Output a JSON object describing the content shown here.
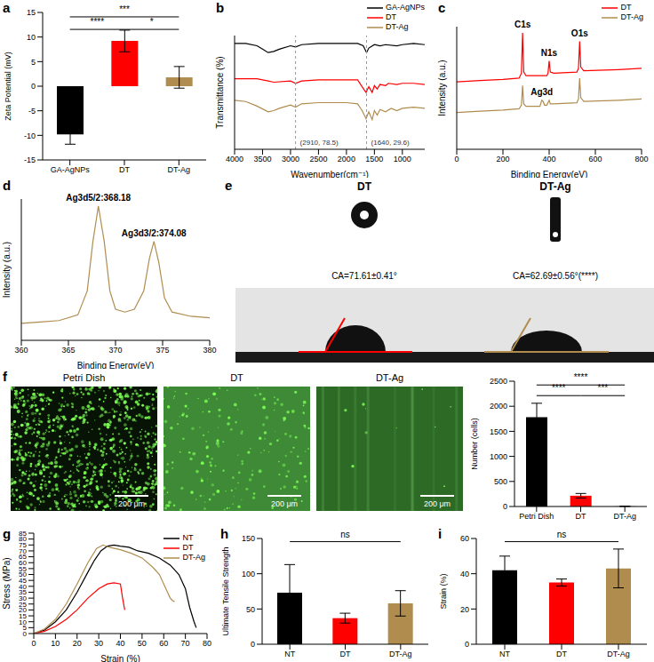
{
  "chart_data": [
    {
      "panel": "a",
      "type": "bar",
      "categories": [
        "GA-AgNPs",
        "DT",
        "DT-Ag"
      ],
      "values": [
        -9.8,
        9.2,
        1.8
      ],
      "error": [
        2.0,
        2.2,
        2.2
      ],
      "colors": [
        "#000000",
        "#ff0000",
        "#b08d4f"
      ],
      "y_label": "Zeta Potential (mV)",
      "ylim": [
        -15,
        15
      ],
      "yticks": [
        -15,
        -10,
        -5,
        0,
        5,
        10,
        15
      ],
      "significance": [
        {
          "from": "GA-AgNPs",
          "to": "DT-Ag",
          "label": "***"
        },
        {
          "from": "GA-AgNPs",
          "to": "DT",
          "label": "****"
        },
        {
          "from": "DT",
          "to": "DT-Ag",
          "label": "*"
        }
      ]
    },
    {
      "panel": "b",
      "type": "line",
      "x_label": "Wavenumber(cm⁻¹)",
      "y_label": "Transmittance (%)",
      "xlim": [
        4000,
        600
      ],
      "xticks": [
        4000,
        3500,
        3000,
        2500,
        2000,
        1500,
        1000
      ],
      "ylim": [
        0,
        100
      ],
      "tick_labels": "x",
      "legend": "top-right",
      "annotations": [
        {
          "text": "(2910, 78.5)",
          "x": 2910
        },
        {
          "text": "(1640, 29.6)",
          "x": 1640
        }
      ],
      "series": [
        {
          "name": "GA-AgNPs",
          "color": "#000000",
          "x": [
            4000,
            3800,
            3600,
            3500,
            3400,
            3300,
            3200,
            3000,
            2910,
            2800,
            2500,
            2200,
            2000,
            1800,
            1700,
            1640,
            1600,
            1500,
            1400,
            1300,
            1100,
            1000,
            800,
            600
          ],
          "values": [
            93,
            93,
            91,
            88,
            85,
            86,
            88,
            91,
            90,
            92,
            93,
            93,
            93,
            93,
            91,
            85,
            89,
            92,
            91,
            92,
            91,
            92,
            93,
            92
          ]
        },
        {
          "name": "DT",
          "color": "#ff0000",
          "x": [
            4000,
            3600,
            3400,
            3300,
            3000,
            2910,
            2800,
            2500,
            2000,
            1800,
            1720,
            1650,
            1600,
            1540,
            1500,
            1450,
            1400,
            1300,
            1250,
            1100,
            1000,
            800,
            600
          ],
          "values": [
            62,
            62,
            60,
            59,
            60,
            58,
            60,
            61,
            61,
            61,
            55,
            50,
            55,
            50,
            56,
            53,
            57,
            56,
            58,
            57,
            58,
            58,
            57
          ]
        },
        {
          "name": "DT-Ag",
          "color": "#b08d4f",
          "x": [
            4000,
            3800,
            3600,
            3400,
            3300,
            3200,
            3000,
            2910,
            2800,
            2500,
            2200,
            2000,
            1800,
            1720,
            1650,
            1600,
            1540,
            1500,
            1450,
            1400,
            1300,
            1200,
            1100,
            1000,
            800,
            600
          ],
          "values": [
            43,
            42,
            38,
            33,
            34,
            36,
            39,
            37,
            40,
            41,
            41,
            41,
            40,
            34,
            27,
            33,
            26,
            34,
            30,
            35,
            33,
            36,
            34,
            36,
            37,
            36
          ]
        }
      ]
    },
    {
      "panel": "c",
      "type": "line",
      "x_label": "Binding Energy(eV)",
      "y_label": "Intensity (a.u.)",
      "xlim": [
        0,
        800
      ],
      "xticks": [
        0,
        200,
        400,
        600,
        800
      ],
      "ylim": [
        0,
        100
      ],
      "tick_labels": "x",
      "legend": "top-right",
      "annotations": [
        {
          "text": "C1s",
          "x": 285,
          "y": 95
        },
        {
          "text": "N1s",
          "x": 400,
          "y": 72
        },
        {
          "text": "O1s",
          "x": 532,
          "y": 88
        },
        {
          "text": "Ag3d",
          "x": 368,
          "y": 40
        }
      ],
      "series": [
        {
          "name": "DT",
          "color": "#ff0000",
          "x": [
            0,
            100,
            200,
            270,
            280,
            285,
            290,
            300,
            390,
            395,
            400,
            405,
            420,
            520,
            527,
            532,
            537,
            550,
            700,
            800
          ],
          "values": [
            55,
            56,
            57,
            58,
            62,
            95,
            63,
            60,
            60,
            62,
            72,
            63,
            62,
            63,
            66,
            88,
            67,
            64,
            65,
            66
          ]
        },
        {
          "name": "DT-Ag",
          "color": "#b08d4f",
          "x": [
            0,
            100,
            200,
            270,
            280,
            285,
            290,
            300,
            360,
            368,
            374,
            380,
            390,
            400,
            405,
            420,
            520,
            527,
            532,
            537,
            550,
            700,
            800
          ],
          "values": [
            30,
            31,
            32,
            33,
            36,
            52,
            37,
            35,
            35,
            40,
            39,
            36,
            36,
            40,
            37,
            37,
            38,
            41,
            58,
            42,
            39,
            40,
            41
          ]
        }
      ]
    },
    {
      "panel": "d",
      "type": "line",
      "x_label": "Binding Energy(eV)",
      "y_label": "Intensity (a.u.)",
      "xlim": [
        360,
        380
      ],
      "xticks": [
        360,
        365,
        370,
        375,
        380
      ],
      "ylim": [
        0,
        100
      ],
      "tick_labels": "x",
      "annotations": [
        {
          "text": "Ag3d5/2:368.18",
          "x": 368.18,
          "y": 95
        },
        {
          "text": "Ag3d3/2:374.08",
          "x": 374.08,
          "y": 70
        }
      ],
      "series": [
        {
          "name": "DT-Ag",
          "color": "#b08d4f",
          "x": [
            360,
            362,
            364,
            366,
            367,
            367.6,
            368.18,
            368.8,
            369.4,
            370,
            371,
            372,
            373,
            373.6,
            374.08,
            374.6,
            375.2,
            376,
            378,
            380
          ],
          "values": [
            12,
            13,
            14,
            18,
            35,
            70,
            95,
            70,
            35,
            22,
            20,
            22,
            35,
            58,
            70,
            55,
            30,
            20,
            17,
            16
          ]
        }
      ]
    },
    {
      "panel": "e",
      "type": "photos",
      "items": [
        {
          "title": "DT",
          "annotation": "CA=71.61±0.41°"
        },
        {
          "title": "DT-Ag",
          "annotation": "CA=62.69±0.56°(****)"
        }
      ]
    },
    {
      "panel": "f",
      "type": "bar",
      "images": [
        {
          "title": "Petri Dish",
          "scale_bar": "200 μm"
        },
        {
          "title": "DT",
          "scale_bar": "200 μm"
        },
        {
          "title": "DT-Ag",
          "scale_bar": "200 μm"
        }
      ],
      "categories": [
        "Petri Dish",
        "DT",
        "DT-Ag"
      ],
      "values": [
        1780,
        215,
        5
      ],
      "error": [
        280,
        45,
        2
      ],
      "colors": [
        "#000000",
        "#ff0000",
        "#b08d4f"
      ],
      "y_label": "Number (cells)",
      "ylim": [
        0,
        2500
      ],
      "yticks": [
        0,
        500,
        1000,
        1500,
        2000,
        2500
      ],
      "significance": [
        {
          "from": "Petri Dish",
          "to": "DT-Ag",
          "label": "****"
        },
        {
          "from": "Petri Dish",
          "to": "DT",
          "label": "****"
        },
        {
          "from": "DT",
          "to": "DT-Ag",
          "label": "***"
        }
      ]
    },
    {
      "panel": "g",
      "type": "line",
      "x_label": "Strain (%)",
      "y_label": "Stress (MPa)",
      "xlim": [
        0,
        80
      ],
      "xticks": [
        0,
        10,
        20,
        30,
        40,
        50,
        60,
        70,
        80
      ],
      "ylim": [
        0,
        85
      ],
      "yticks": [
        0,
        5,
        10,
        15,
        20,
        25,
        30,
        35,
        40,
        45,
        50,
        55,
        60,
        65,
        70,
        75,
        80,
        85
      ],
      "legend": "top-right",
      "series": [
        {
          "name": "NT",
          "color": "#000000",
          "x": [
            0,
            5,
            10,
            15,
            20,
            25,
            28,
            31,
            34,
            37,
            40,
            44,
            48,
            53,
            58,
            63,
            67,
            70,
            72,
            74,
            75
          ],
          "values": [
            0,
            3,
            10,
            20,
            35,
            52,
            62,
            70,
            74,
            75,
            74,
            73,
            70,
            68,
            64,
            58,
            50,
            38,
            22,
            10,
            5
          ]
        },
        {
          "name": "DT",
          "color": "#ff0000",
          "x": [
            0,
            5,
            10,
            15,
            20,
            25,
            30,
            34,
            37,
            40,
            41,
            42
          ],
          "values": [
            0,
            2,
            6,
            12,
            20,
            30,
            38,
            42,
            43,
            42,
            30,
            20
          ]
        },
        {
          "name": "DT-Ag",
          "color": "#b08d4f",
          "x": [
            0,
            5,
            10,
            15,
            20,
            25,
            29,
            32,
            35,
            40,
            45,
            50,
            55,
            58,
            61,
            63,
            64,
            65
          ],
          "values": [
            0,
            4,
            12,
            25,
            42,
            60,
            72,
            75,
            73,
            71,
            68,
            64,
            56,
            50,
            38,
            30,
            28,
            27
          ]
        }
      ]
    },
    {
      "panel": "h",
      "type": "bar",
      "categories": [
        "NT",
        "DT",
        "DT-Ag"
      ],
      "values": [
        73,
        37,
        58
      ],
      "error": [
        40,
        7,
        18
      ],
      "colors": [
        "#000000",
        "#ff0000",
        "#b08d4f"
      ],
      "y_label": "Ultimate Tensile Strength",
      "ylim": [
        0,
        150
      ],
      "yticks": [
        0,
        50,
        100,
        150
      ],
      "significance": [
        {
          "from": "NT",
          "to": "DT-Ag",
          "label": "ns"
        }
      ]
    },
    {
      "panel": "i",
      "type": "bar",
      "categories": [
        "NT",
        "DT",
        "DT-Ag"
      ],
      "values": [
        42,
        35,
        43
      ],
      "error": [
        8,
        2,
        11
      ],
      "colors": [
        "#000000",
        "#ff0000",
        "#b08d4f"
      ],
      "y_label": "Strain (%)",
      "ylim": [
        0,
        60
      ],
      "yticks": [
        0,
        20,
        40,
        60
      ],
      "significance": [
        {
          "from": "NT",
          "to": "DT-Ag",
          "label": "ns"
        }
      ]
    }
  ]
}
